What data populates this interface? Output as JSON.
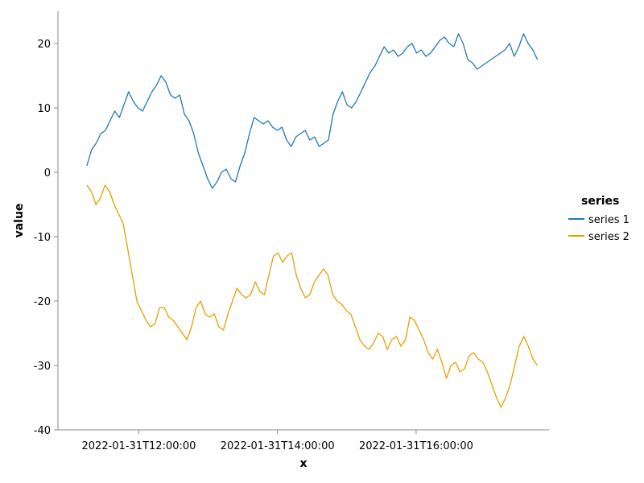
{
  "chart_data": {
    "type": "line",
    "xlabel": "x",
    "ylabel": "value",
    "x_ticks": [
      "2022-01-31T12:00:00",
      "2022-01-31T14:00:00",
      "2022-01-31T16:00:00"
    ],
    "y_ticks": [
      "20",
      "10",
      "0",
      "-10",
      "-20",
      "-30",
      "-40"
    ],
    "x_start": "2022-01-31T11:15:00",
    "x_end": "2022-01-31T17:45:00",
    "xlim": [
      "2022-01-31T10:50:00",
      "2022-01-31T17:55:00"
    ],
    "ylim": [
      -40,
      25
    ],
    "grid": false,
    "legend": {
      "title": "series",
      "placement": "right"
    },
    "series": [
      {
        "name": "series 1",
        "color": "#1f77b4",
        "values": [
          1.0,
          3.5,
          4.5,
          6.0,
          6.5,
          8.0,
          9.5,
          8.5,
          10.5,
          12.5,
          11.0,
          10.0,
          9.5,
          11.0,
          12.5,
          13.5,
          15.0,
          14.0,
          12.0,
          11.5,
          12.0,
          9.0,
          8.0,
          6.0,
          3.0,
          1.0,
          -1.0,
          -2.5,
          -1.5,
          0.0,
          0.5,
          -1.0,
          -1.5,
          1.0,
          3.0,
          6.0,
          8.5,
          8.0,
          7.5,
          8.0,
          7.0,
          6.5,
          7.0,
          5.0,
          4.0,
          5.5,
          6.0,
          6.5,
          5.0,
          5.5,
          4.0,
          4.5,
          5.0,
          9.0,
          11.0,
          12.5,
          10.5,
          10.0,
          11.0,
          12.5,
          14.0,
          15.5,
          16.5,
          18.0,
          19.5,
          18.5,
          19.0,
          18.0,
          18.5,
          19.5,
          20.0,
          18.5,
          19.0,
          18.0,
          18.5,
          19.5,
          20.5,
          21.0,
          20.0,
          19.5,
          21.5,
          20.0,
          17.5,
          17.0,
          16.0,
          16.5,
          17.0,
          17.5,
          18.0,
          18.5,
          19.0,
          20.0,
          18.0,
          19.5,
          21.5,
          20.0,
          19.0,
          17.5
        ]
      },
      {
        "name": "series 2",
        "color": "#e69f00",
        "values": [
          -2.0,
          -3.0,
          -5.0,
          -4.0,
          -2.0,
          -3.0,
          -5.0,
          -6.5,
          -8.0,
          -12.0,
          -16.0,
          -20.0,
          -21.5,
          -23.0,
          -24.0,
          -23.5,
          -21.0,
          -21.0,
          -22.5,
          -23.0,
          -24.0,
          -25.0,
          -26.0,
          -24.0,
          -21.0,
          -20.0,
          -22.0,
          -22.5,
          -22.0,
          -24.0,
          -24.5,
          -22.0,
          -20.0,
          -18.0,
          -19.0,
          -19.5,
          -19.0,
          -17.0,
          -18.5,
          -19.0,
          -16.0,
          -13.0,
          -12.5,
          -14.0,
          -13.0,
          -12.5,
          -16.0,
          -18.0,
          -19.5,
          -19.0,
          -17.0,
          -16.0,
          -15.0,
          -16.0,
          -19.0,
          -20.0,
          -20.5,
          -21.5,
          -22.0,
          -24.0,
          -26.0,
          -27.0,
          -27.5,
          -26.5,
          -25.0,
          -25.5,
          -27.5,
          -26.0,
          -25.5,
          -27.0,
          -26.0,
          -22.5,
          -23.0,
          -24.5,
          -26.0,
          -28.0,
          -29.0,
          -27.5,
          -29.5,
          -32.0,
          -30.0,
          -29.5,
          -31.0,
          -30.5,
          -28.5,
          -28.0,
          -29.0,
          -29.5,
          -31.0,
          -33.0,
          -35.0,
          -36.5,
          -35.0,
          -33.0,
          -30.0,
          -27.0,
          -25.5,
          -27.0,
          -29.0,
          -30.0
        ]
      }
    ]
  }
}
